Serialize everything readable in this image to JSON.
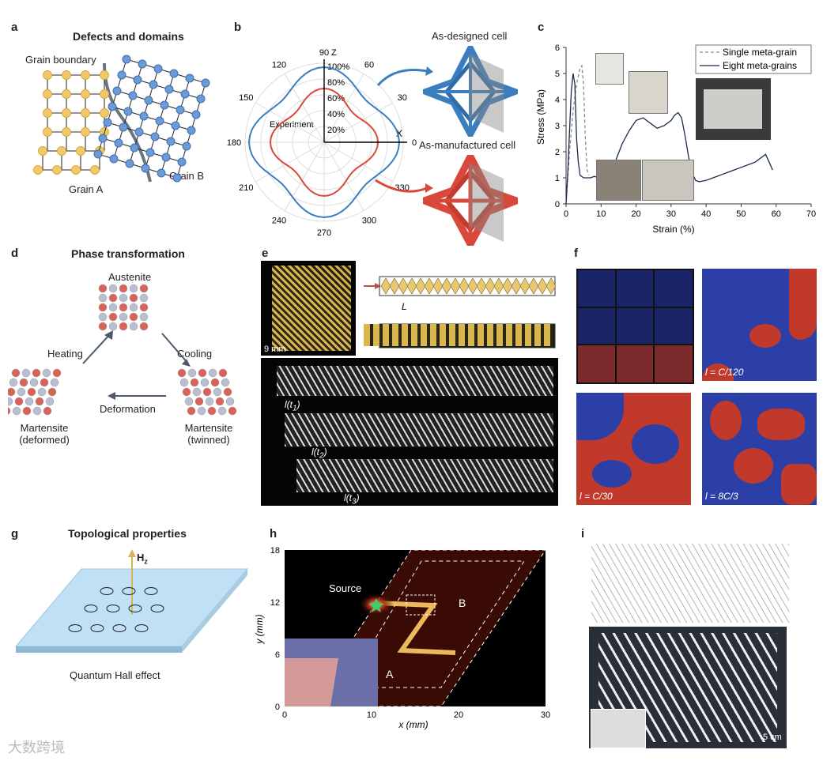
{
  "panels": {
    "a": {
      "label": "a",
      "title": "Defects and domains",
      "grain_boundary": "Grain boundary",
      "grain_a": "Grain A",
      "grain_b": "Grain B"
    },
    "b": {
      "label": "b",
      "angles": [
        "90",
        "120",
        "150",
        "180",
        "210",
        "240",
        "270",
        "300",
        "330",
        "0",
        "30",
        "60"
      ],
      "radial": [
        "100%",
        "80%",
        "60%",
        "40%",
        "20%"
      ],
      "axis_z": "Z",
      "axis_x": "X",
      "experiment": "Experiment",
      "as_designed": "As-designed cell",
      "as_manufactured": "As-manufactured cell",
      "colors": {
        "designed": "#3b7ec0",
        "manufactured": "#d9493b"
      }
    },
    "c": {
      "label": "c",
      "xlabel": "Strain (%)",
      "ylabel": "Stress (MPa)",
      "legend": [
        "Single meta-grain",
        "Eight meta-grains"
      ]
    },
    "d": {
      "label": "d",
      "title": "Phase transformation",
      "austenite": "Austenite",
      "heating": "Heating",
      "cooling": "Cooling",
      "deformation": "Deformation",
      "mart_def": [
        "Martensite",
        "(deformed)"
      ],
      "mart_twin": [
        "Martensite",
        "(twinned)"
      ]
    },
    "e": {
      "label": "e",
      "scale": "9 mm",
      "L": "L",
      "lt1": "l(t",
      "lt2": "l(t",
      "lt3": "l(t",
      "sub1": "1",
      "sub2": "2",
      "sub3": "3",
      "close": ")"
    },
    "f": {
      "label": "f",
      "labels": [
        "l = C/120",
        "l = C/30",
        "l = 8C/3"
      ]
    },
    "g": {
      "label": "g",
      "title": "Topological properties",
      "field": "H",
      "field_sub": "z",
      "caption": "Quantum Hall effect"
    },
    "h": {
      "label": "h",
      "source": "Source",
      "region_a": "A",
      "region_b": "B",
      "xlabel": "x (mm)",
      "ylabel": "y (mm)",
      "xticks": [
        "0",
        "10",
        "20",
        "30"
      ],
      "yticks": [
        "0",
        "6",
        "12",
        "18"
      ]
    },
    "i": {
      "label": "i",
      "scale": "5 cm"
    },
    "watermark": "大数跨境"
  },
  "chart_data": [
    {
      "type": "line",
      "title": "",
      "xlabel": "Strain (%)",
      "ylabel": "Stress (MPa)",
      "xlim": [
        0,
        70
      ],
      "ylim": [
        0,
        6
      ],
      "xticks": [
        0,
        10,
        20,
        30,
        40,
        50,
        60,
        70
      ],
      "yticks": [
        0,
        1,
        2,
        3,
        4,
        5,
        6
      ],
      "legend_position": "top-right",
      "series": [
        {
          "name": "Single meta-grain",
          "style": "dashed",
          "color": "#8a8a8a",
          "x": [
            0,
            1,
            2,
            3,
            4,
            4.5,
            5,
            5.5,
            6,
            6.5
          ],
          "y": [
            0,
            2.0,
            3.6,
            4.6,
            5.2,
            5.3,
            4.6,
            2.5,
            1.3,
            1.1
          ]
        },
        {
          "name": "Eight meta-grains",
          "style": "solid",
          "color": "#1a2a4a",
          "x": [
            0,
            0.5,
            1,
            1.5,
            2,
            2.5,
            3,
            3.5,
            4,
            5,
            6,
            7,
            8,
            10,
            12,
            14,
            16,
            18,
            20,
            22,
            24,
            26,
            28,
            30,
            31,
            32,
            33,
            34,
            35,
            36,
            37,
            38,
            40,
            42,
            44,
            46,
            48,
            50,
            52,
            54,
            56,
            57,
            58,
            59
          ],
          "y": [
            0,
            1.2,
            2.8,
            4.3,
            5.0,
            4.6,
            2.5,
            1.6,
            1.1,
            1.0,
            1.0,
            1.0,
            1.05,
            1.0,
            1.1,
            1.6,
            2.3,
            2.8,
            3.2,
            3.3,
            3.1,
            2.9,
            3.0,
            3.2,
            3.4,
            3.5,
            3.3,
            2.6,
            1.8,
            1.2,
            0.9,
            0.85,
            0.9,
            1.0,
            1.1,
            1.2,
            1.3,
            1.4,
            1.5,
            1.6,
            1.8,
            1.9,
            1.6,
            1.3
          ]
        }
      ]
    },
    {
      "type": "line",
      "title": "",
      "polar": true,
      "angle_unit": "degrees",
      "radial_ticks": [
        "20%",
        "40%",
        "60%",
        "80%",
        "100%"
      ],
      "angle_ticks": [
        0,
        30,
        60,
        90,
        120,
        150,
        180,
        210,
        240,
        270,
        300,
        330
      ],
      "series": [
        {
          "name": "As-designed cell",
          "color": "#3b7ec0"
        },
        {
          "name": "Experiment",
          "color": "#d9493b"
        }
      ]
    }
  ]
}
